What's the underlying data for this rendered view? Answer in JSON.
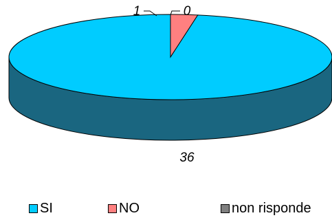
{
  "chart_data": {
    "type": "pie",
    "style": "3d",
    "categories": [
      "SI",
      "NO",
      "non risponde"
    ],
    "values": [
      36,
      1,
      0
    ],
    "colors": [
      "#00ccff",
      "#ff8080",
      "#808080"
    ],
    "side_colors": [
      "#1a6680",
      "#804040",
      "#404040"
    ],
    "data_labels": [
      "36",
      "1",
      "0"
    ],
    "legend_position": "bottom"
  }
}
